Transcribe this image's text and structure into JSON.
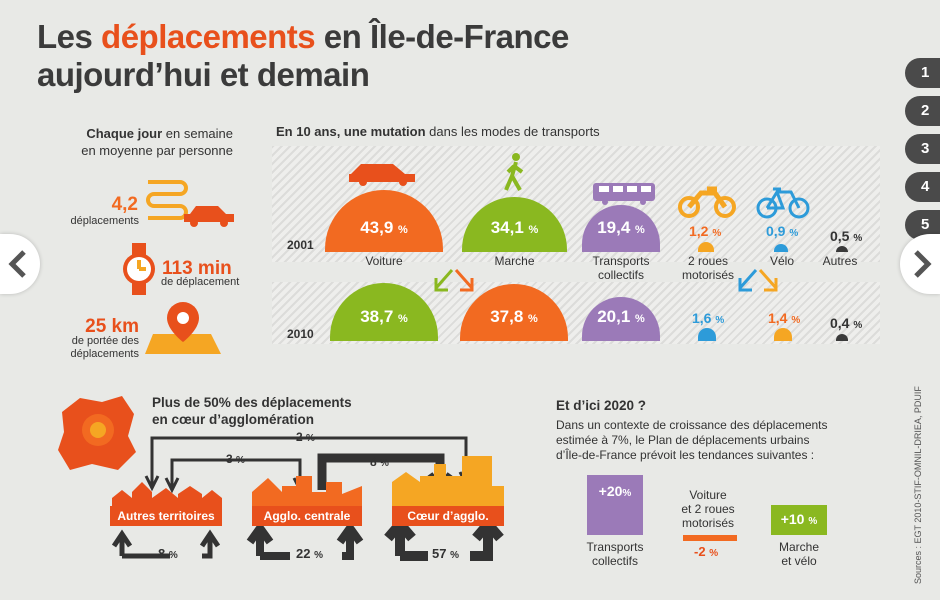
{
  "title": {
    "part1": "Les ",
    "highlight": "déplacements",
    "part2": " en Île-de-France",
    "line2": "aujourd’hui et demain"
  },
  "nav": {
    "numbers": [
      "1",
      "2",
      "3",
      "4",
      "5"
    ]
  },
  "daily": {
    "header_bold": "Chaque jour",
    "header_rest": " en semaine",
    "header_line2": "en moyenne par personne",
    "trips_value": "4,2",
    "trips_label": "déplacements",
    "time_value": "113 min",
    "time_label": "de déplacement",
    "dist_value": "25 km",
    "dist_label1": "de portée des",
    "dist_label2": "déplacements"
  },
  "mutation": {
    "header_bold": "En 10 ans, une mutation",
    "header_rest": " dans les modes de transports",
    "year1": "2001",
    "year2": "2010",
    "modes": [
      {
        "label": "Voiture",
        "v2001": "43,9",
        "v2010": "38,7"
      },
      {
        "label": "Marche",
        "v2001": "34,1",
        "v2010": "37,8"
      },
      {
        "label": "Transports collectifs",
        "label1": "Transports",
        "label2": "collectifs",
        "v2001": "19,4",
        "v2010": "20,1"
      },
      {
        "label1": "2 roues",
        "label2": "motorisés",
        "v2001": "1,2",
        "v2010": "1,6"
      },
      {
        "label": "Vélo",
        "v2001": "0,9",
        "v2010": "1,4"
      },
      {
        "label": "Autres",
        "v2001": "0,5",
        "v2010": "0,4"
      }
    ],
    "unit": "%"
  },
  "territories": {
    "header1": "Plus de 50% des déplacements",
    "header2": "en cœur d’agglomération",
    "flows": {
      "top": "2",
      "mid": "3",
      "right": "8"
    },
    "zones": [
      {
        "name": "Autres territoires",
        "internal": "8"
      },
      {
        "name": "Agglo. centrale",
        "internal": "22"
      },
      {
        "name": "Cœur d’agglo.",
        "internal": "57"
      }
    ],
    "unit": "%"
  },
  "forecast": {
    "header": "Et d’ici 2020 ?",
    "text1": "Dans un contexte de croissance des déplacements",
    "text2": "estimée à 7%, le Plan de déplacements urbains",
    "text3": "d’Île-de-France prévoit les tendances suivantes :",
    "items": [
      {
        "value": "+20",
        "label1": "Transports",
        "label2": "collectifs"
      },
      {
        "value": "-2",
        "label1": "Voiture",
        "label2": "et 2 roues",
        "label3": "motorisés"
      },
      {
        "value": "+10",
        "label1": "Marche",
        "label2": "et vélo"
      }
    ],
    "unit": "%"
  },
  "source": "Sources : EGT 2010-STIF-OMNIL-DRIEA, PDUIF",
  "colors": {
    "orange": "#f26a21",
    "green": "#8ab820",
    "purple": "#9b7ab8",
    "blue": "#2d9bd9",
    "red": "#e8501c",
    "dark": "#3a3a3a"
  }
}
